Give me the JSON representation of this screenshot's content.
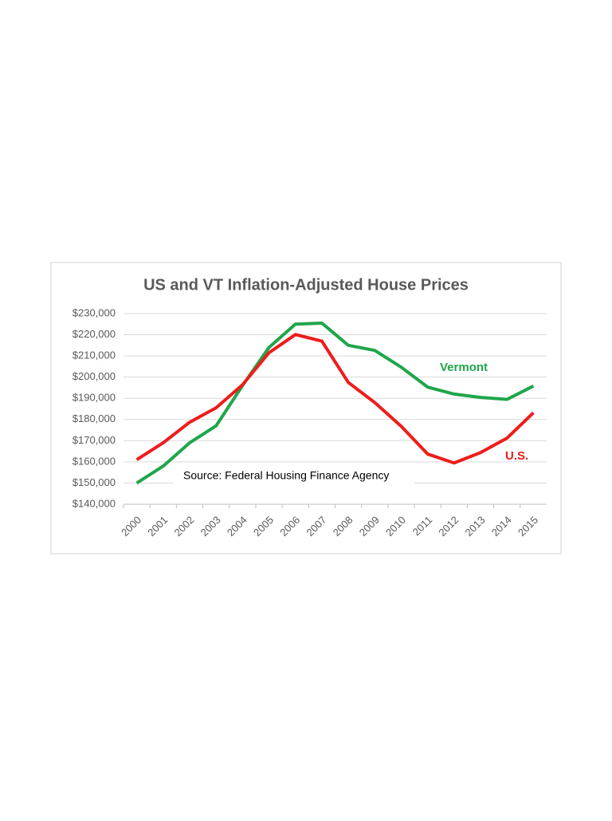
{
  "chart_data": {
    "type": "line",
    "title": "US and VT Inflation-Adjusted House Prices",
    "categories": [
      "2000",
      "2001",
      "2002",
      "2003",
      "2004",
      "2005",
      "2006",
      "2007",
      "2008",
      "2009",
      "2010",
      "2011",
      "2012",
      "2013",
      "2014",
      "2015"
    ],
    "series": [
      {
        "name": "Vermont",
        "color": "#1fa64b",
        "values": [
          150000,
          158000,
          169000,
          177000,
          196000,
          214000,
          225000,
          225500,
          215000,
          212600,
          204700,
          195300,
          192000,
          190400,
          189500,
          195800
        ]
      },
      {
        "name": "U.S.",
        "color": "#ee1c1c",
        "values": [
          161000,
          169000,
          178700,
          185500,
          196400,
          211500,
          220100,
          217000,
          197500,
          188000,
          176800,
          163700,
          159500,
          164400,
          171200,
          183200
        ]
      }
    ],
    "ylim": [
      140000,
      230000
    ],
    "yticks": [
      {
        "value": 140000,
        "label": "$140,000"
      },
      {
        "value": 150000,
        "label": "$150,000"
      },
      {
        "value": 160000,
        "label": "$160,000"
      },
      {
        "value": 170000,
        "label": "$170,000"
      },
      {
        "value": 180000,
        "label": "$180,000"
      },
      {
        "value": 190000,
        "label": "$190,000"
      },
      {
        "value": 200000,
        "label": "$200,000"
      },
      {
        "value": 210000,
        "label": "$210,000"
      },
      {
        "value": 220000,
        "label": "$220,000"
      },
      {
        "value": 230000,
        "label": "$230,000"
      }
    ],
    "grid": true,
    "annotation": "Source:  Federal Housing Finance Agency"
  }
}
